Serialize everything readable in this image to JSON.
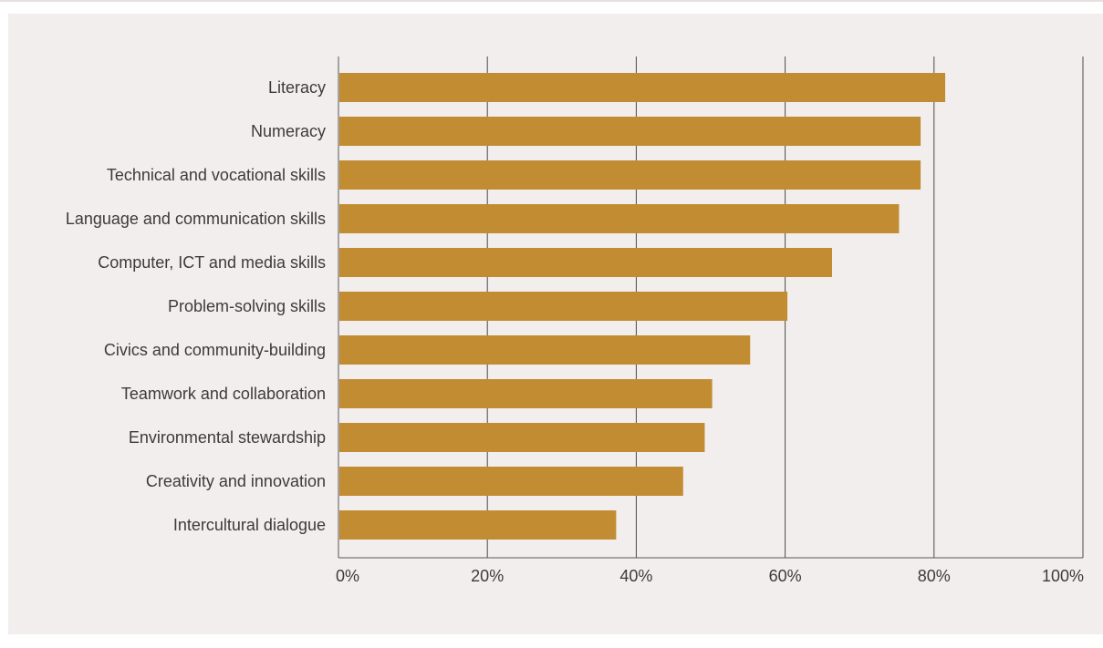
{
  "chart_data": {
    "type": "bar",
    "orientation": "horizontal",
    "categories": [
      "Literacy",
      "Numeracy",
      "Technical and vocational skills",
      "Language and communication skills",
      "Computer, ICT and media skills",
      "Problem-solving skills",
      "Civics and community-building",
      "Teamwork and collaboration",
      "Environmental stewardship",
      "Creativity and innovation",
      "Intercultural dialogue"
    ],
    "values": [
      81.5,
      78.2,
      78.2,
      75.3,
      66.3,
      60.3,
      55.3,
      50.2,
      49.2,
      46.3,
      37.3
    ],
    "xlim": [
      0,
      100
    ],
    "x_ticks": [
      "0%",
      "20%",
      "40%",
      "60%",
      "80%",
      "100%"
    ],
    "grid": "vertical",
    "bar_color": "#c28c32",
    "title": "",
    "xlabel": "",
    "ylabel": ""
  }
}
